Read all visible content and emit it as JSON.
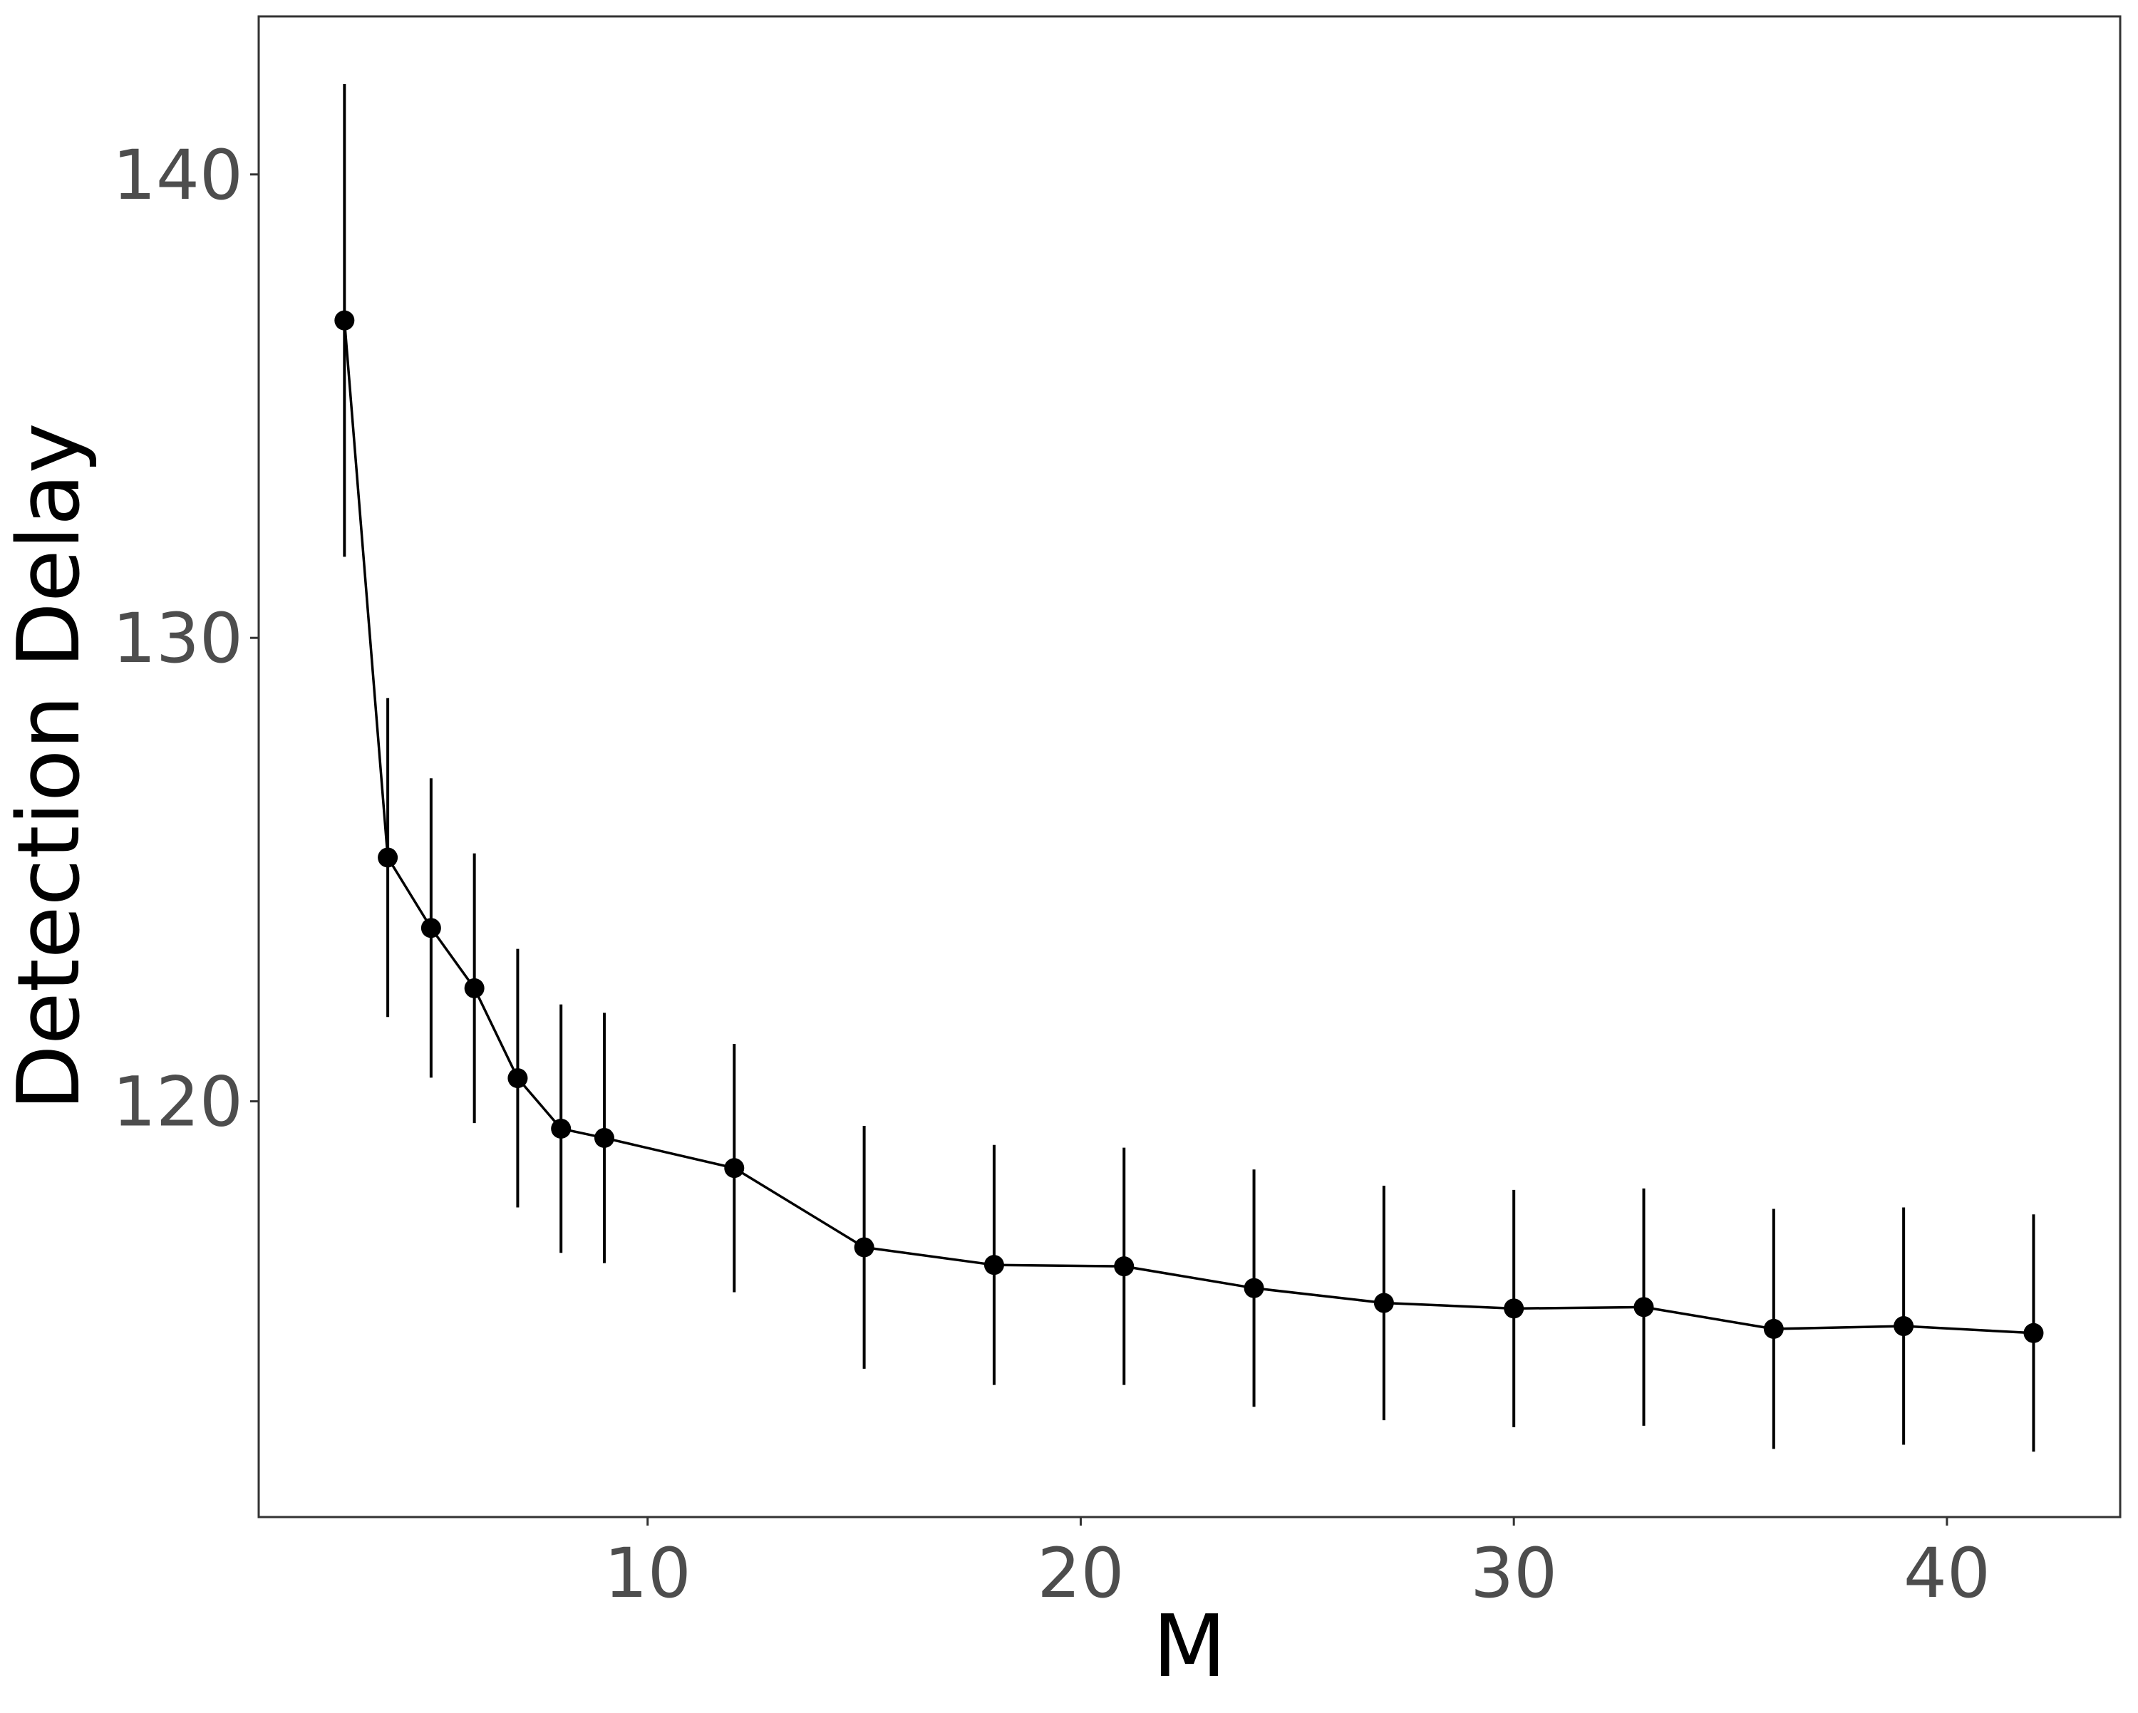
{
  "chart_data": {
    "type": "line_errorbar",
    "x_label": "M",
    "y_label": "Detection Delay",
    "x": [
      3,
      4,
      5,
      6,
      7,
      8,
      9,
      12,
      15,
      18,
      21,
      24,
      27,
      30,
      33,
      36,
      39,
      42
    ],
    "values": [
      136.85,
      125.26,
      123.74,
      122.44,
      120.5,
      119.41,
      119.21,
      118.56,
      116.85,
      116.47,
      116.44,
      115.97,
      115.65,
      115.53,
      115.56,
      115.09,
      115.15,
      115.0
    ],
    "errors": [
      5.1,
      3.44,
      3.23,
      2.91,
      2.79,
      2.68,
      2.7,
      2.68,
      2.62,
      2.59,
      2.56,
      2.56,
      2.53,
      2.56,
      2.56,
      2.59,
      2.56,
      2.56
    ],
    "color": "#000000",
    "xlim": [
      1.02,
      44.0
    ],
    "xticks": [
      10,
      20,
      30,
      40
    ],
    "ylim": [
      111.03,
      143.41
    ],
    "yticks": [
      120,
      130,
      140
    ],
    "grid": false
  }
}
